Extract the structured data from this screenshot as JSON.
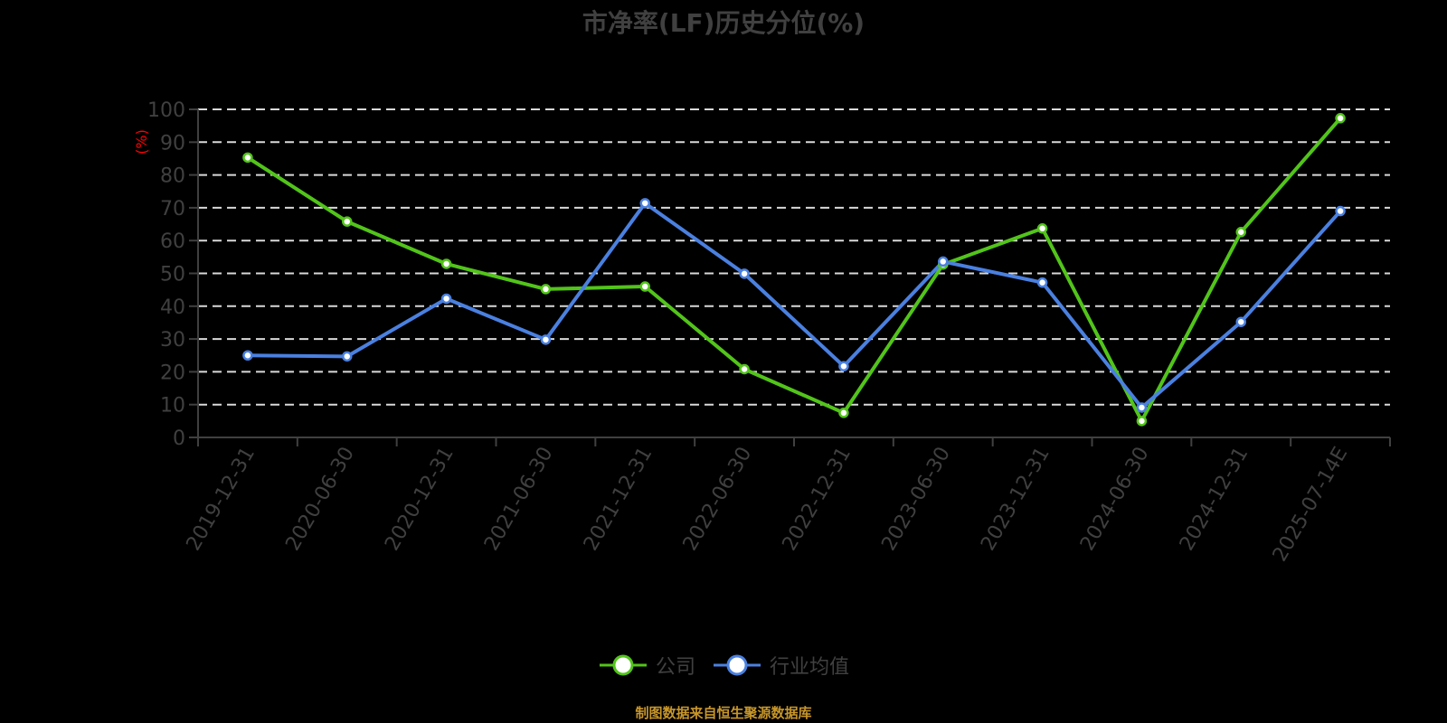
{
  "title": "市净率(LF)历史分位(%)",
  "footer": "制图数据来自恒生聚源数据库",
  "colors": {
    "company": "#52c41a",
    "industry": "#4a80e0",
    "axis": "#404040",
    "grid": "#d9d9d9",
    "ylabel": "#ff0000",
    "footer": "#c8962a"
  },
  "legend": [
    {
      "name": "公司",
      "color": "#52c41a"
    },
    {
      "name": "行业均值",
      "color": "#4a80e0"
    }
  ],
  "chart_data": {
    "type": "line",
    "title": "市净率(LF)历史分位(%)",
    "xlabel": "",
    "ylabel": "(%)",
    "ylim": [
      0,
      100
    ],
    "yticks": [
      0,
      10,
      20,
      30,
      40,
      50,
      60,
      70,
      80,
      90,
      100
    ],
    "grid": true,
    "legend_position": "bottom",
    "categories": [
      "2019-12-31",
      "2020-06-30",
      "2020-12-31",
      "2021-06-30",
      "2021-12-31",
      "2022-06-30",
      "2022-12-31",
      "2023-06-30",
      "2023-12-31",
      "2024-06-30",
      "2024-12-31",
      "2025-07-14E"
    ],
    "series": [
      {
        "name": "公司",
        "values": [
          85.3,
          65.8,
          52.9,
          45.2,
          46.0,
          20.8,
          7.5,
          52.7,
          63.7,
          5.0,
          62.6,
          97.3
        ]
      },
      {
        "name": "行业均值",
        "values": [
          25.0,
          24.7,
          42.3,
          29.8,
          71.4,
          49.9,
          21.7,
          53.6,
          47.2,
          9.1,
          35.2,
          69.0
        ]
      }
    ]
  }
}
